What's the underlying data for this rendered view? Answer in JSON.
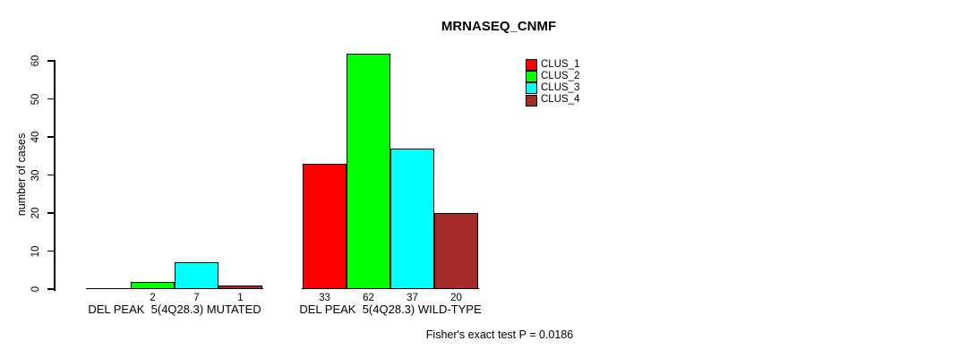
{
  "title": "MRNASEQ_CNMF",
  "chart_data": {
    "type": "bar",
    "title": "MRNASEQ_CNMF",
    "xlabel": "",
    "ylabel": "number of cases",
    "ylim": [
      0,
      60
    ],
    "yticks": [
      0,
      10,
      20,
      30,
      40,
      50,
      60
    ],
    "grid": false,
    "legend_position": "top-right",
    "categories": [
      "DEL PEAK  5(4Q28.3) MUTATED",
      "DEL PEAK  5(4Q28.3) WILD-TYPE"
    ],
    "series": [
      {
        "name": "CLUS_1",
        "color": "#FF0000",
        "values": [
          0,
          33
        ]
      },
      {
        "name": "CLUS_2",
        "color": "#00FF00",
        "values": [
          2,
          62
        ]
      },
      {
        "name": "CLUS_3",
        "color": "#00FFFF",
        "values": [
          7,
          37
        ]
      },
      {
        "name": "CLUS_4",
        "color": "#A52A2A",
        "values": [
          1,
          20
        ]
      }
    ],
    "bar_value_labels": [
      [
        "",
        "2",
        "7",
        "1"
      ],
      [
        "33",
        "62",
        "37",
        "20"
      ]
    ],
    "annotation": "Fisher's exact test P = 0.0186"
  }
}
